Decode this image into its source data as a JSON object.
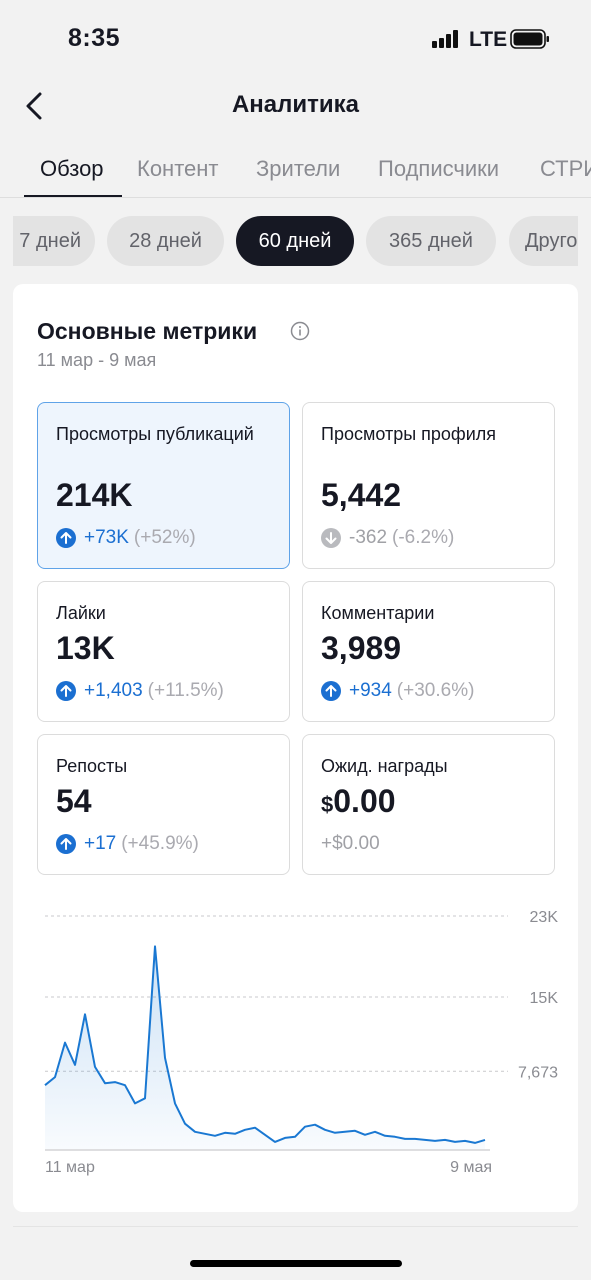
{
  "status": {
    "time": "8:35",
    "network": "LTE"
  },
  "nav": {
    "title": "Аналитика",
    "back_icon": "chevron-left-icon"
  },
  "tabs": [
    "Обзор",
    "Контент",
    "Зрители",
    "Подписчики",
    "СТРИМ"
  ],
  "period_chips": [
    "7 дней",
    "28 дней",
    "60 дней",
    "365 дней",
    "Другое"
  ],
  "active_chip": "60 дней",
  "card": {
    "title": "Основные метрики",
    "subtitle": "11 мар - 9 мая",
    "metrics": [
      {
        "label": "Просмотры публикаций",
        "value": "214K",
        "delta_abs": "+73K",
        "delta_pct": "(+52%)",
        "trend": "up"
      },
      {
        "label": "Просмотры профиля",
        "value": "5,442",
        "delta_abs": "-362",
        "delta_pct": "(-6.2%)",
        "trend": "down"
      },
      {
        "label": "Лайки",
        "value": "13K",
        "delta_abs": "+1,403",
        "delta_pct": "(+11.5%)",
        "trend": "up"
      },
      {
        "label": "Комментарии",
        "value": "3,989",
        "delta_abs": "+934",
        "delta_pct": "(+30.6%)",
        "trend": "up"
      },
      {
        "label": "Репосты",
        "value": "54",
        "delta_abs": "+17",
        "delta_pct": "(+45.9%)",
        "trend": "up"
      },
      {
        "label": "Ожид. награды",
        "currency": "$",
        "value": "0.00",
        "delta_abs": "+$0.00",
        "delta_pct": "",
        "trend": "none"
      }
    ]
  },
  "colors": {
    "accent": "#1b6fd1",
    "selected_bg": "#eef5fd",
    "selected_border": "#5fa3e8",
    "line": "#1a78d2"
  },
  "chart_data": {
    "type": "area",
    "x_labels": [
      "11 мар",
      "9 мая"
    ],
    "y_ticks": [
      "23K",
      "15K",
      "7,673"
    ],
    "ylim": [
      0,
      23000
    ],
    "grid": true,
    "values": [
      6300,
      7100,
      10500,
      8300,
      13300,
      8100,
      6500,
      6600,
      6300,
      4500,
      5000,
      20000,
      9000,
      4500,
      2500,
      1700,
      1500,
      1300,
      1600,
      1500,
      1900,
      2100,
      1400,
      700,
      1100,
      1200,
      2200,
      2400,
      1900,
      1600,
      1700,
      1800,
      1400,
      1700,
      1300,
      1200,
      1000,
      1000,
      900,
      800,
      900,
      700,
      800,
      600,
      900
    ]
  }
}
